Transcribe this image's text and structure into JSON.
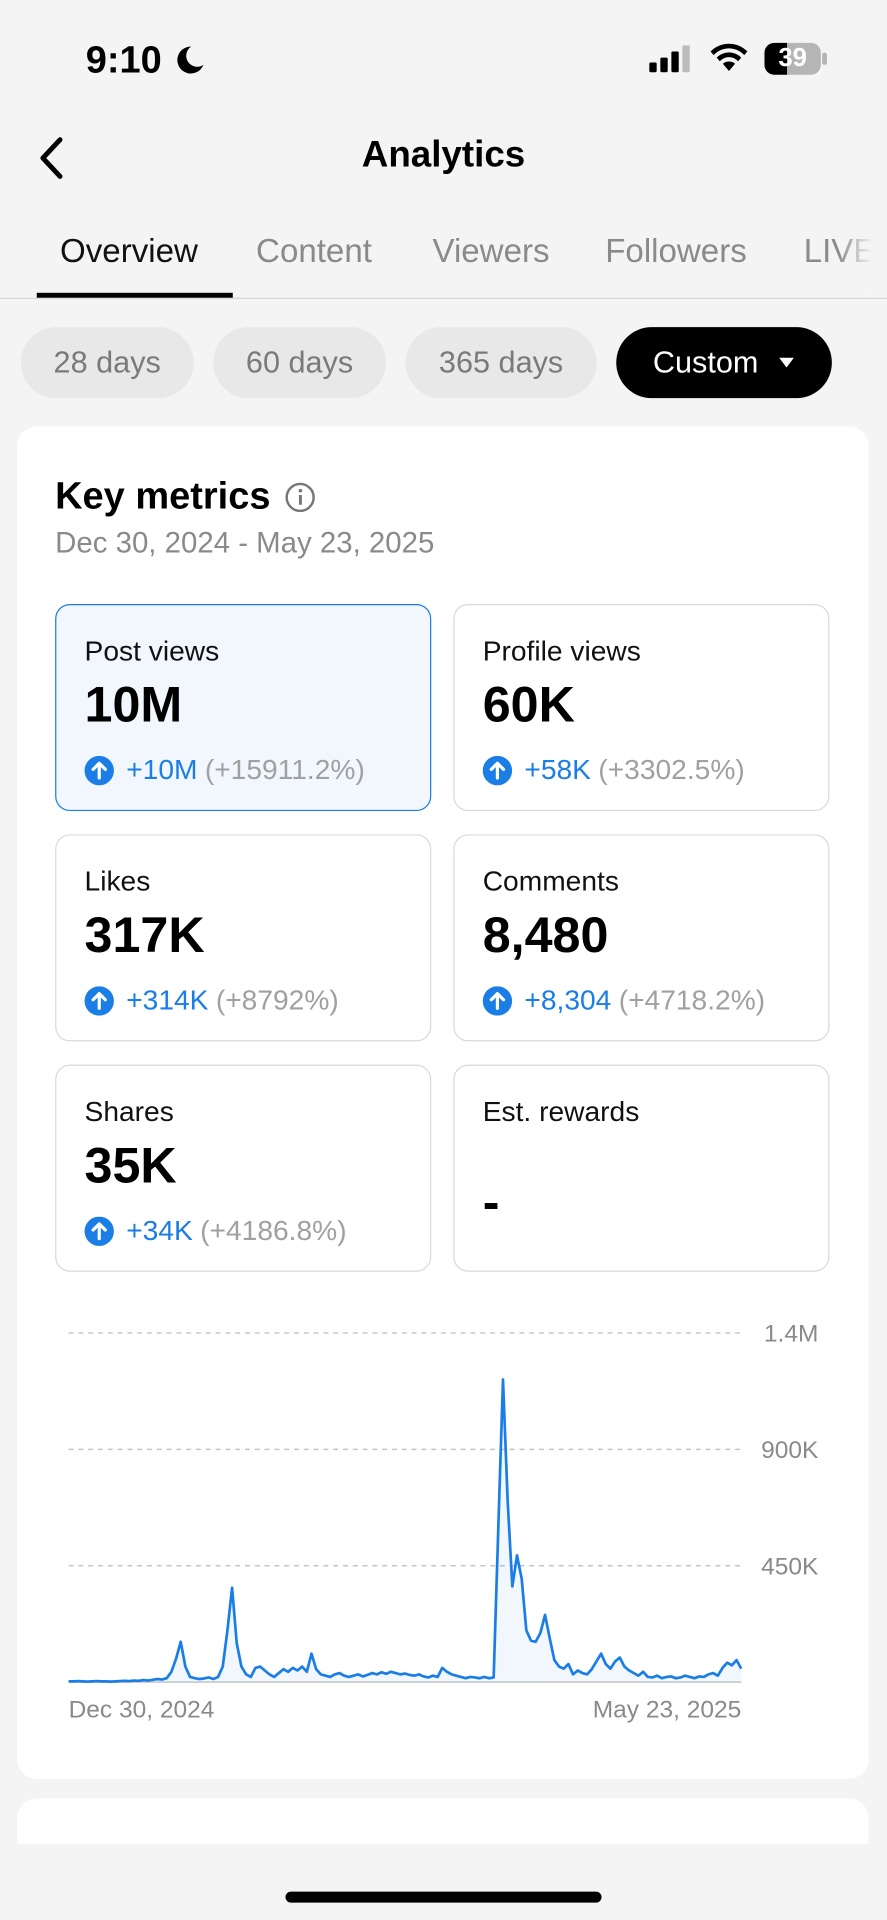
{
  "status": {
    "time": "9:10",
    "battery": "39"
  },
  "header": {
    "title": "Analytics"
  },
  "tabs": [
    "Overview",
    "Content",
    "Viewers",
    "Followers",
    "LIVE"
  ],
  "filters": [
    "28 days",
    "60 days",
    "365 days",
    "Custom"
  ],
  "card": {
    "title": "Key metrics",
    "date_range": "Dec 30, 2024 - May 23, 2025",
    "metrics": [
      {
        "label": "Post views",
        "value": "10M",
        "change": "+10M",
        "change_pct": "(+15911.2%)"
      },
      {
        "label": "Profile views",
        "value": "60K",
        "change": "+58K",
        "change_pct": "(+3302.5%)"
      },
      {
        "label": "Likes",
        "value": "317K",
        "change": "+314K",
        "change_pct": "(+8792%)"
      },
      {
        "label": "Comments",
        "value": "8,480",
        "change": "+8,304",
        "change_pct": "(+4718.2%)"
      },
      {
        "label": "Shares",
        "value": "35K",
        "change": "+34K",
        "change_pct": "(+4186.8%)"
      },
      {
        "label": "Est. rewards",
        "value": "-"
      }
    ]
  },
  "chart_data": {
    "type": "line",
    "color": "#1a7ee6",
    "grid": true,
    "categories": [
      "Dec 30, 2024",
      null,
      null,
      null,
      null,
      null,
      null,
      null,
      null,
      null,
      null,
      null,
      null,
      null,
      null,
      null,
      null,
      null,
      null,
      null,
      null,
      null,
      null,
      null,
      null,
      null,
      null,
      null,
      null,
      null,
      null,
      null,
      null,
      null,
      null,
      null,
      null,
      null,
      null,
      null,
      null,
      null,
      null,
      null,
      null,
      null,
      null,
      null,
      null,
      null,
      null,
      null,
      null,
      null,
      null,
      null,
      null,
      null,
      null,
      null,
      null,
      null,
      null,
      null,
      null,
      null,
      null,
      null,
      null,
      null,
      null,
      null,
      null,
      null,
      null,
      null,
      null,
      null,
      null,
      null,
      null,
      null,
      null,
      null,
      null,
      null,
      null,
      null,
      null,
      null,
      null,
      null,
      null,
      null,
      null,
      null,
      null,
      null,
      null,
      null,
      null,
      null,
      null,
      null,
      null,
      null,
      null,
      null,
      null,
      null,
      null,
      null,
      null,
      null,
      null,
      null,
      null,
      null,
      null,
      null,
      null,
      null,
      null,
      null,
      null,
      null,
      null,
      null,
      null,
      null,
      null,
      null,
      null,
      null,
      null,
      null,
      null,
      null,
      null,
      null,
      null,
      null,
      null,
      null,
      "May 23, 2025"
    ],
    "values": [
      3000,
      3000,
      4000,
      3000,
      2000,
      3000,
      4000,
      3000,
      3000,
      2000,
      3000,
      4000,
      5000,
      4000,
      6000,
      5000,
      8000,
      6000,
      9000,
      12000,
      10000,
      15000,
      40000,
      90000,
      156000,
      60000,
      20000,
      15000,
      12000,
      14000,
      18000,
      12000,
      20000,
      60000,
      200000,
      365000,
      150000,
      60000,
      30000,
      20000,
      55000,
      60000,
      45000,
      30000,
      20000,
      35000,
      50000,
      40000,
      55000,
      45000,
      60000,
      40000,
      110000,
      50000,
      30000,
      25000,
      20000,
      30000,
      35000,
      25000,
      20000,
      25000,
      30000,
      22000,
      28000,
      35000,
      30000,
      38000,
      32000,
      40000,
      35000,
      30000,
      33000,
      28000,
      25000,
      30000,
      22000,
      18000,
      25000,
      20000,
      55000,
      40000,
      30000,
      25000,
      20000,
      15000,
      20000,
      18000,
      15000,
      20000,
      15000,
      18000,
      600000,
      1170000,
      700000,
      370000,
      490000,
      400000,
      200000,
      160000,
      156000,
      190000,
      260000,
      170000,
      85000,
      60000,
      52000,
      70000,
      30000,
      45000,
      35000,
      30000,
      50000,
      80000,
      110000,
      70000,
      52000,
      80000,
      95000,
      60000,
      45000,
      35000,
      25000,
      40000,
      20000,
      18000,
      25000,
      15000,
      20000,
      22000,
      15000,
      18000,
      25000,
      20000,
      15000,
      22000,
      20000,
      30000,
      35000,
      25000,
      55000,
      75000,
      65000,
      85000,
      52000
    ],
    "ylim": [
      0,
      1350000
    ],
    "yticks": [
      {
        "value": 450000,
        "label": "450K"
      },
      {
        "value": 900000,
        "label": "900K"
      },
      {
        "value": 1350000,
        "label": "1.4M"
      }
    ]
  }
}
